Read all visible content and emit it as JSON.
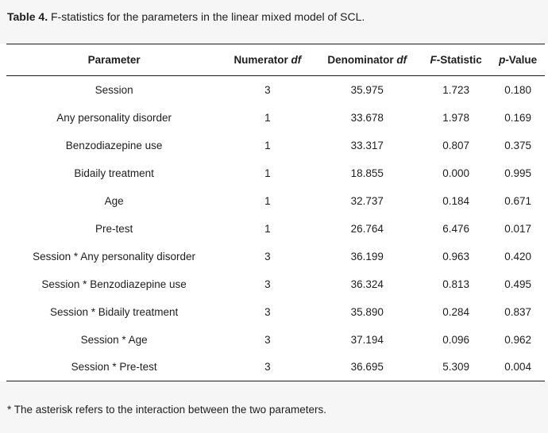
{
  "caption": {
    "label": "Table 4.",
    "text": " F-statistics for the parameters in the linear mixed model of SCL."
  },
  "table": {
    "columns": [
      {
        "pre": "Parameter",
        "it": "",
        "post": ""
      },
      {
        "pre": "Numerator ",
        "it": "df",
        "post": ""
      },
      {
        "pre": "Denominator ",
        "it": "df",
        "post": ""
      },
      {
        "pre": "",
        "it": "F",
        "post": "-Statistic"
      },
      {
        "pre": "",
        "it": "p",
        "post": "-Value"
      }
    ],
    "column_widths_pct": [
      40,
      17,
      20,
      13,
      10
    ],
    "rows": [
      [
        "Session",
        "3",
        "35.975",
        "1.723",
        "0.180"
      ],
      [
        "Any personality disorder",
        "1",
        "33.678",
        "1.978",
        "0.169"
      ],
      [
        "Benzodiazepine use",
        "1",
        "33.317",
        "0.807",
        "0.375"
      ],
      [
        "Bidaily treatment",
        "1",
        "18.855",
        "0.000",
        "0.995"
      ],
      [
        "Age",
        "1",
        "32.737",
        "0.184",
        "0.671"
      ],
      [
        "Pre-test",
        "1",
        "26.764",
        "6.476",
        "0.017"
      ],
      [
        "Session * Any personality disorder",
        "3",
        "36.199",
        "0.963",
        "0.420"
      ],
      [
        "Session * Benzodiazepine use",
        "3",
        "36.324",
        "0.813",
        "0.495"
      ],
      [
        "Session * Bidaily treatment",
        "3",
        "35.890",
        "0.284",
        "0.837"
      ],
      [
        "Session * Age",
        "3",
        "37.194",
        "0.096",
        "0.962"
      ],
      [
        "Session * Pre-test",
        "3",
        "36.695",
        "5.309",
        "0.004"
      ]
    ]
  },
  "footnote": "* The asterisk refers to the interaction between the two parameters.",
  "colors": {
    "page_background": "#f6f6f6",
    "table_background": "#ffffff",
    "rule": "#1a1a1a",
    "text": "#1e1e1e"
  }
}
